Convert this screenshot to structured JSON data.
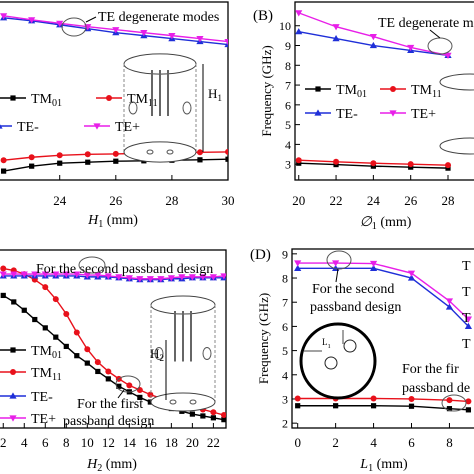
{
  "colors": {
    "TM01": "#000000",
    "TM11": "#e8111b",
    "TE-": "#1f2fd8",
    "TE+": "#e81fe8"
  },
  "legend_names": [
    "TM",
    "TM",
    "TE-",
    "TE+"
  ],
  "legend_subs": [
    "01",
    "11",
    "",
    ""
  ],
  "chart_data": [
    {
      "id": "A",
      "type": "line",
      "panel_label": "",
      "xlabel": "H",
      "xlabel_sub": "1",
      "xlabel_unit": " (mm)",
      "ylabel": "",
      "xticks": [
        "24",
        "26",
        "28",
        "30"
      ],
      "yticks": [],
      "xlim": [
        21.8,
        30
      ],
      "ylim": [
        2.2,
        11.2
      ],
      "annotations": [
        {
          "text": "TE degenerate modes"
        }
      ],
      "inset_labels": [
        {
          "text": "H",
          "sub": "1"
        }
      ],
      "legend": "middle-left",
      "x": [
        22,
        23,
        24,
        25,
        26,
        27,
        28,
        29,
        30
      ],
      "series": [
        {
          "name": "TM01",
          "values": [
            2.65,
            2.9,
            3.05,
            3.1,
            3.15,
            3.17,
            3.2,
            3.22,
            3.25
          ]
        },
        {
          "name": "TM11",
          "values": [
            3.2,
            3.35,
            3.45,
            3.5,
            3.52,
            3.55,
            3.57,
            3.6,
            3.62
          ]
        },
        {
          "name": "TE-",
          "values": [
            10.4,
            10.25,
            10.05,
            9.85,
            9.65,
            9.5,
            9.35,
            9.2,
            9.05
          ]
        },
        {
          "name": "TE+",
          "values": [
            10.5,
            10.3,
            10.12,
            9.95,
            9.8,
            9.65,
            9.5,
            9.35,
            9.2
          ]
        }
      ]
    },
    {
      "id": "B",
      "type": "line",
      "panel_label": "(B)",
      "xlabel": "∅",
      "xlabel_sub": "1",
      "xlabel_unit": " (mm)",
      "ylabel": "Frequency (GHz)",
      "xticks": [
        "20",
        "22",
        "24",
        "26",
        "28"
      ],
      "yticks": [
        "3",
        "4",
        "5",
        "6",
        "7",
        "8",
        "9",
        "10"
      ],
      "xlim": [
        19.8,
        29.5
      ],
      "ylim": [
        2.2,
        11.2
      ],
      "annotations": [
        {
          "text": "TE degenerate modes"
        }
      ],
      "inset_labels": [],
      "legend": "middle-left",
      "x": [
        20,
        22,
        24,
        26,
        28
      ],
      "series": [
        {
          "name": "TM01",
          "values": [
            3.05,
            2.98,
            2.9,
            2.85,
            2.8
          ]
        },
        {
          "name": "TM11",
          "values": [
            3.2,
            3.12,
            3.05,
            3.0,
            2.95
          ]
        },
        {
          "name": "TE-",
          "values": [
            9.7,
            9.35,
            9.0,
            8.75,
            8.5
          ]
        },
        {
          "name": "TE+",
          "values": [
            10.65,
            9.95,
            9.45,
            8.9,
            8.5
          ]
        }
      ]
    },
    {
      "id": "C",
      "type": "line",
      "panel_label": "",
      "xlabel": "H",
      "xlabel_sub": "2",
      "xlabel_unit": " (mm)",
      "ylabel": "",
      "xticks": [
        "2",
        "4",
        "6",
        "8",
        "10",
        "12",
        "14",
        "16",
        "18",
        "20",
        "22"
      ],
      "yticks": [],
      "xlim": [
        1.5,
        23.2
      ],
      "ylim": [
        2.4,
        12.0
      ],
      "annotations": [
        {
          "text": "For the second passband design"
        },
        {
          "text": "For the first"
        },
        {
          "text": "passband design"
        }
      ],
      "inset_labels": [
        {
          "text": "H",
          "sub": "2"
        }
      ],
      "legend": "bottom-left",
      "x": [
        2,
        3,
        4,
        5,
        6,
        7,
        8,
        9,
        10,
        11,
        12,
        13,
        14,
        15,
        16,
        17,
        18,
        19,
        20,
        21,
        22,
        23
      ],
      "series": [
        {
          "name": "TM01",
          "values": [
            9.55,
            9.2,
            8.75,
            8.25,
            7.8,
            7.3,
            6.8,
            6.3,
            5.9,
            5.45,
            5.05,
            4.65,
            4.35,
            4.05,
            3.8,
            3.6,
            3.45,
            3.3,
            3.15,
            3.05,
            2.95,
            2.85
          ]
        },
        {
          "name": "TM11",
          "values": [
            11.0,
            10.9,
            10.7,
            10.4,
            10.0,
            9.35,
            8.55,
            7.55,
            6.65,
            5.95,
            5.45,
            5.05,
            4.7,
            4.45,
            4.2,
            4.0,
            3.85,
            3.7,
            3.55,
            3.4,
            3.25,
            3.1
          ]
        },
        {
          "name": "TE-",
          "values": [
            10.6,
            10.6,
            10.6,
            10.6,
            10.6,
            10.6,
            10.6,
            10.6,
            10.55,
            10.55,
            10.55,
            10.5,
            10.45,
            10.4,
            10.4,
            10.4,
            10.45,
            10.45,
            10.5,
            10.5,
            10.5,
            10.5
          ]
        },
        {
          "name": "TE+",
          "values": [
            10.7,
            10.7,
            10.7,
            10.7,
            10.7,
            10.7,
            10.7,
            10.7,
            10.65,
            10.65,
            10.6,
            10.55,
            10.5,
            10.45,
            10.45,
            10.45,
            10.5,
            10.55,
            10.55,
            10.55,
            10.55,
            10.6
          ]
        }
      ]
    },
    {
      "id": "D",
      "type": "line",
      "panel_label": "(D)",
      "xlabel": "L",
      "xlabel_sub": "1",
      "xlabel_unit": " (mm)",
      "ylabel": "Frequency (GHz)",
      "xticks": [
        "0",
        "2",
        "4",
        "6",
        "8"
      ],
      "yticks": [
        "2",
        "3",
        "4",
        "5",
        "6",
        "7",
        "8",
        "9"
      ],
      "xlim": [
        -0.3,
        9.4
      ],
      "ylim": [
        1.8,
        9.2
      ],
      "annotations": [
        {
          "text": "For the second"
        },
        {
          "text": "passband design"
        },
        {
          "text": "For the fir"
        },
        {
          "text": "passband de"
        }
      ],
      "inset_labels": [
        {
          "text": "L",
          "sub": "1"
        }
      ],
      "legend": "right",
      "legend_partial": [
        "T",
        "T",
        "T",
        "T"
      ],
      "x": [
        0,
        2,
        4,
        6,
        8,
        9
      ],
      "series": [
        {
          "name": "TM01",
          "values": [
            2.72,
            2.72,
            2.72,
            2.7,
            2.6,
            2.55
          ]
        },
        {
          "name": "TM11",
          "values": [
            3.02,
            3.02,
            3.02,
            3.0,
            2.95,
            2.9
          ]
        },
        {
          "name": "TE-",
          "values": [
            8.4,
            8.4,
            8.4,
            8.0,
            6.8,
            6.0
          ]
        },
        {
          "name": "TE+",
          "values": [
            8.62,
            8.62,
            8.6,
            8.2,
            7.05,
            6.3
          ]
        }
      ]
    }
  ]
}
